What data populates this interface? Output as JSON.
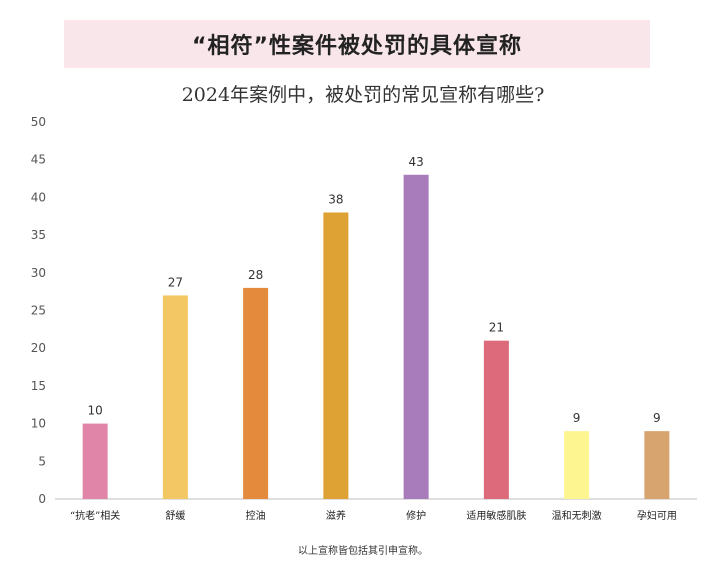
{
  "banner": {
    "title": "“相符”性案件被处罚的具体宣称"
  },
  "chart_data": {
    "type": "bar",
    "title": "2024年案例中，被处罚的常见宣称有哪些?",
    "categories": [
      "“抗老”相关",
      "舒缓",
      "控油",
      "滋养",
      "修护",
      "适用敏感肌肤",
      "温和无刺激",
      "孕妇可用"
    ],
    "values": [
      10,
      27,
      28,
      38,
      43,
      21,
      9,
      9
    ],
    "colors": [
      "#e085a8",
      "#f3c864",
      "#e38a3c",
      "#dea133",
      "#a87bba",
      "#dd6a7b",
      "#fdf590",
      "#d7a36e"
    ],
    "ylim": [
      0,
      50
    ],
    "yticks": [
      0,
      5,
      10,
      15,
      20,
      25,
      30,
      35,
      40,
      45,
      50
    ],
    "grid": false,
    "legend": "none",
    "xlabel": "",
    "ylabel": ""
  },
  "footnote": "以上宣称皆包括其引申宣称。"
}
